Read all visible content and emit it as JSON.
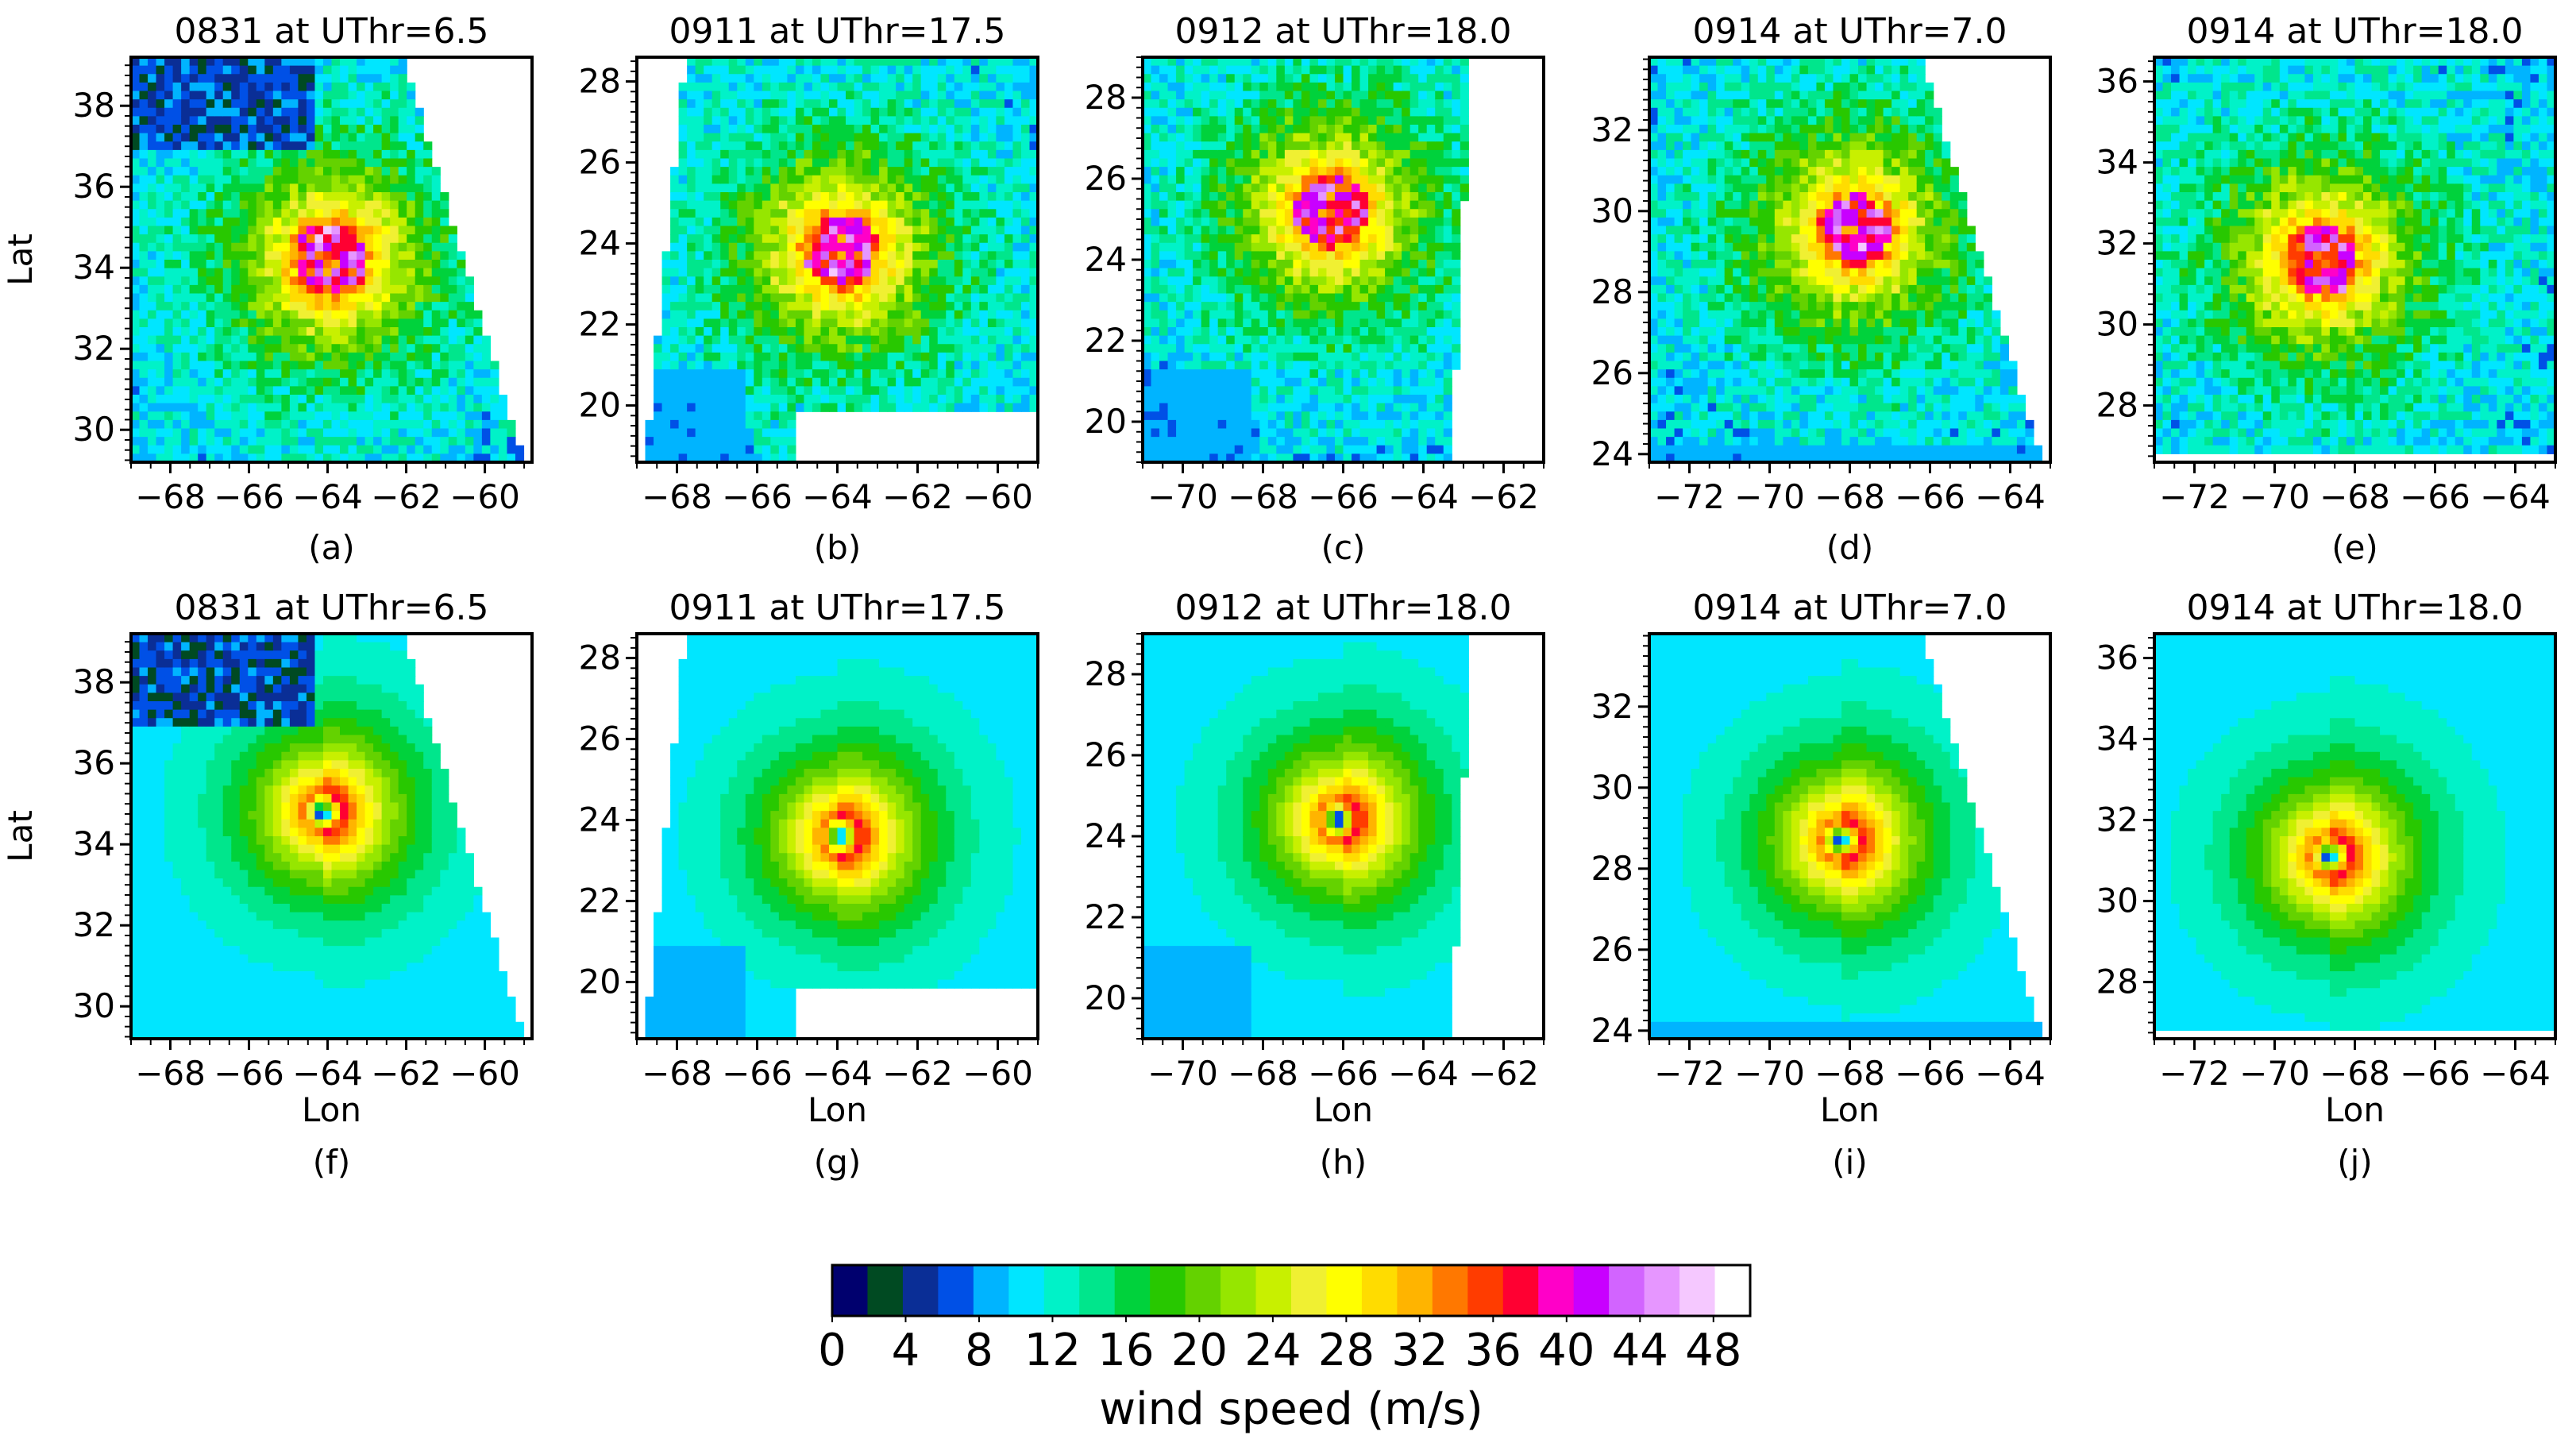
{
  "figure": {
    "panels": [
      {
        "letter": "(a)",
        "title": "0831 at UThr=6.5",
        "xlabel": "",
        "ylabel": "Lat",
        "xticks": [
          -68,
          -66,
          -64,
          -62,
          -60
        ],
        "yticks": [
          30,
          32,
          34,
          36,
          38
        ],
        "xlim": [
          -69,
          -58.8
        ],
        "ylim": [
          29.2,
          39.2
        ],
        "swath": "right-diag",
        "center": [
          -63.9,
          34.2
        ],
        "model": "observed"
      },
      {
        "letter": "(b)",
        "title": "0911 at UThr=17.5",
        "xlabel": "",
        "ylabel": "",
        "xticks": [
          -68,
          -66,
          -64,
          -62,
          -60
        ],
        "yticks": [
          20,
          22,
          24,
          26,
          28
        ],
        "xlim": [
          -69,
          -59
        ],
        "ylim": [
          18.6,
          28.6
        ],
        "swath": "left-diag",
        "center": [
          -63.9,
          23.8
        ],
        "model": "observed"
      },
      {
        "letter": "(c)",
        "title": "0912 at UThr=18.0",
        "xlabel": "",
        "ylabel": "",
        "xticks": [
          -70,
          -68,
          -66,
          -64,
          -62
        ],
        "yticks": [
          20,
          22,
          24,
          26,
          28
        ],
        "xlim": [
          -71,
          -61
        ],
        "ylim": [
          19,
          29
        ],
        "swath": "right-steep",
        "center": [
          -66.3,
          25.2
        ],
        "model": "observed"
      },
      {
        "letter": "(d)",
        "title": "0914 at UThr=7.0",
        "xlabel": "",
        "ylabel": "",
        "xticks": [
          -72,
          -70,
          -68,
          -66,
          -64
        ],
        "yticks": [
          24,
          26,
          28,
          30,
          32
        ],
        "xlim": [
          -73,
          -63
        ],
        "ylim": [
          23.8,
          33.8
        ],
        "swath": "right-diag",
        "center": [
          -67.9,
          29.5
        ],
        "model": "observed"
      },
      {
        "letter": "(e)",
        "title": "0914 at UThr=18.0",
        "xlabel": "",
        "ylabel": "",
        "xticks": [
          -72,
          -70,
          -68,
          -66,
          -64
        ],
        "yticks": [
          28,
          30,
          32,
          34,
          36
        ],
        "xlim": [
          -73,
          -63
        ],
        "ylim": [
          26.6,
          36.6
        ],
        "swath": "full",
        "center": [
          -68.8,
          31.6
        ],
        "model": "observed"
      },
      {
        "letter": "(f)",
        "title": "0831 at UThr=6.5",
        "xlabel": "Lon",
        "ylabel": "Lat",
        "xticks": [
          -68,
          -66,
          -64,
          -62,
          -60
        ],
        "yticks": [
          30,
          32,
          34,
          36,
          38
        ],
        "xlim": [
          -69,
          -58.8
        ],
        "ylim": [
          29.2,
          39.2
        ],
        "swath": "right-diag",
        "center": [
          -64.1,
          34.8
        ],
        "model": "smooth"
      },
      {
        "letter": "(g)",
        "title": "0911 at UThr=17.5",
        "xlabel": "Lon",
        "ylabel": "",
        "xticks": [
          -68,
          -66,
          -64,
          -62,
          -60
        ],
        "yticks": [
          20,
          22,
          24,
          26,
          28
        ],
        "xlim": [
          -69,
          -59
        ],
        "ylim": [
          18.6,
          28.6
        ],
        "swath": "left-diag",
        "center": [
          -63.9,
          23.6
        ],
        "model": "smooth"
      },
      {
        "letter": "(h)",
        "title": "0912 at UThr=18.0",
        "xlabel": "Lon",
        "ylabel": "",
        "xticks": [
          -70,
          -68,
          -66,
          -64,
          -62
        ],
        "yticks": [
          20,
          22,
          24,
          26,
          28
        ],
        "xlim": [
          -71,
          -61
        ],
        "ylim": [
          19,
          29
        ],
        "swath": "right-steep",
        "center": [
          -66.1,
          24.4
        ],
        "model": "smooth"
      },
      {
        "letter": "(i)",
        "title": "0914 at UThr=7.0",
        "xlabel": "Lon",
        "ylabel": "",
        "xticks": [
          -72,
          -70,
          -68,
          -66,
          -64
        ],
        "yticks": [
          24,
          26,
          28,
          30,
          32
        ],
        "xlim": [
          -73,
          -63
        ],
        "ylim": [
          23.8,
          33.8
        ],
        "swath": "right-diag",
        "center": [
          -68.2,
          28.7
        ],
        "model": "smooth"
      },
      {
        "letter": "(j)",
        "title": "0914 at UThr=18.0",
        "xlabel": "Lon",
        "ylabel": "",
        "xticks": [
          -72,
          -70,
          -68,
          -66,
          -64
        ],
        "yticks": [
          28,
          30,
          32,
          34,
          36
        ],
        "xlim": [
          -73,
          -63
        ],
        "ylim": [
          26.6,
          36.6
        ],
        "swath": "full",
        "center": [
          -68.6,
          31.1
        ],
        "model": "smooth"
      }
    ],
    "colorbar": {
      "label": "wind speed (m/s)",
      "ticks": [
        0,
        4,
        8,
        12,
        16,
        20,
        24,
        28,
        32,
        36,
        40,
        44,
        48
      ],
      "levels": [
        0,
        2,
        4,
        6,
        8,
        10,
        12,
        14,
        16,
        18,
        20,
        22,
        24,
        26,
        28,
        30,
        32,
        34,
        36,
        38,
        40,
        42,
        44,
        46,
        48,
        50
      ],
      "colors": [
        "#00006e",
        "#004a22",
        "#0a2e96",
        "#0050e6",
        "#00b4ff",
        "#00e6ff",
        "#00f2c8",
        "#00e68c",
        "#00d23c",
        "#28c800",
        "#64d200",
        "#96e600",
        "#c8f000",
        "#f0f032",
        "#ffff00",
        "#ffdc00",
        "#ffb400",
        "#ff7800",
        "#ff3c00",
        "#ff0032",
        "#ff00c8",
        "#c800ff",
        "#d264ff",
        "#e696ff",
        "#f5c8ff",
        "#ffffff"
      ]
    }
  }
}
